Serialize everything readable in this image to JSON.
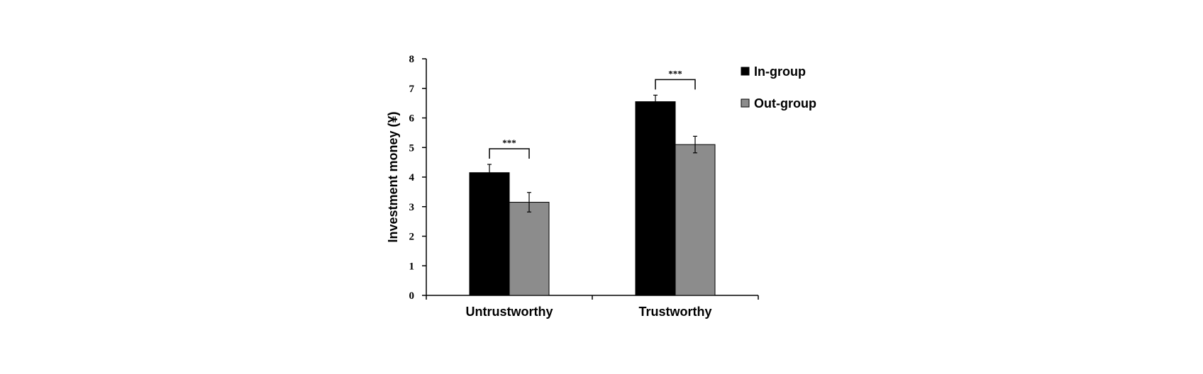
{
  "chart_data": {
    "type": "bar",
    "title": "",
    "xlabel": "",
    "ylabel": "Investment money (¥)",
    "ylim": [
      0,
      8
    ],
    "yticks": [
      "0",
      "1",
      "2",
      "3",
      "4",
      "5",
      "6",
      "7",
      "8"
    ],
    "categories": [
      "Untrustworthy",
      "Trustworthy"
    ],
    "series": [
      {
        "name": "In-group",
        "color": "#000000",
        "values": [
          4.15,
          6.55
        ],
        "errors": [
          0.28,
          0.22
        ]
      },
      {
        "name": "Out-group",
        "color": "#8c8c8c",
        "values": [
          3.15,
          5.1
        ],
        "errors": [
          0.33,
          0.28
        ]
      }
    ],
    "significance": [
      {
        "category": "Untrustworthy",
        "label": "***"
      },
      {
        "category": "Trustworthy",
        "label": "***"
      }
    ],
    "legend_position": "top-right",
    "grid": false
  }
}
